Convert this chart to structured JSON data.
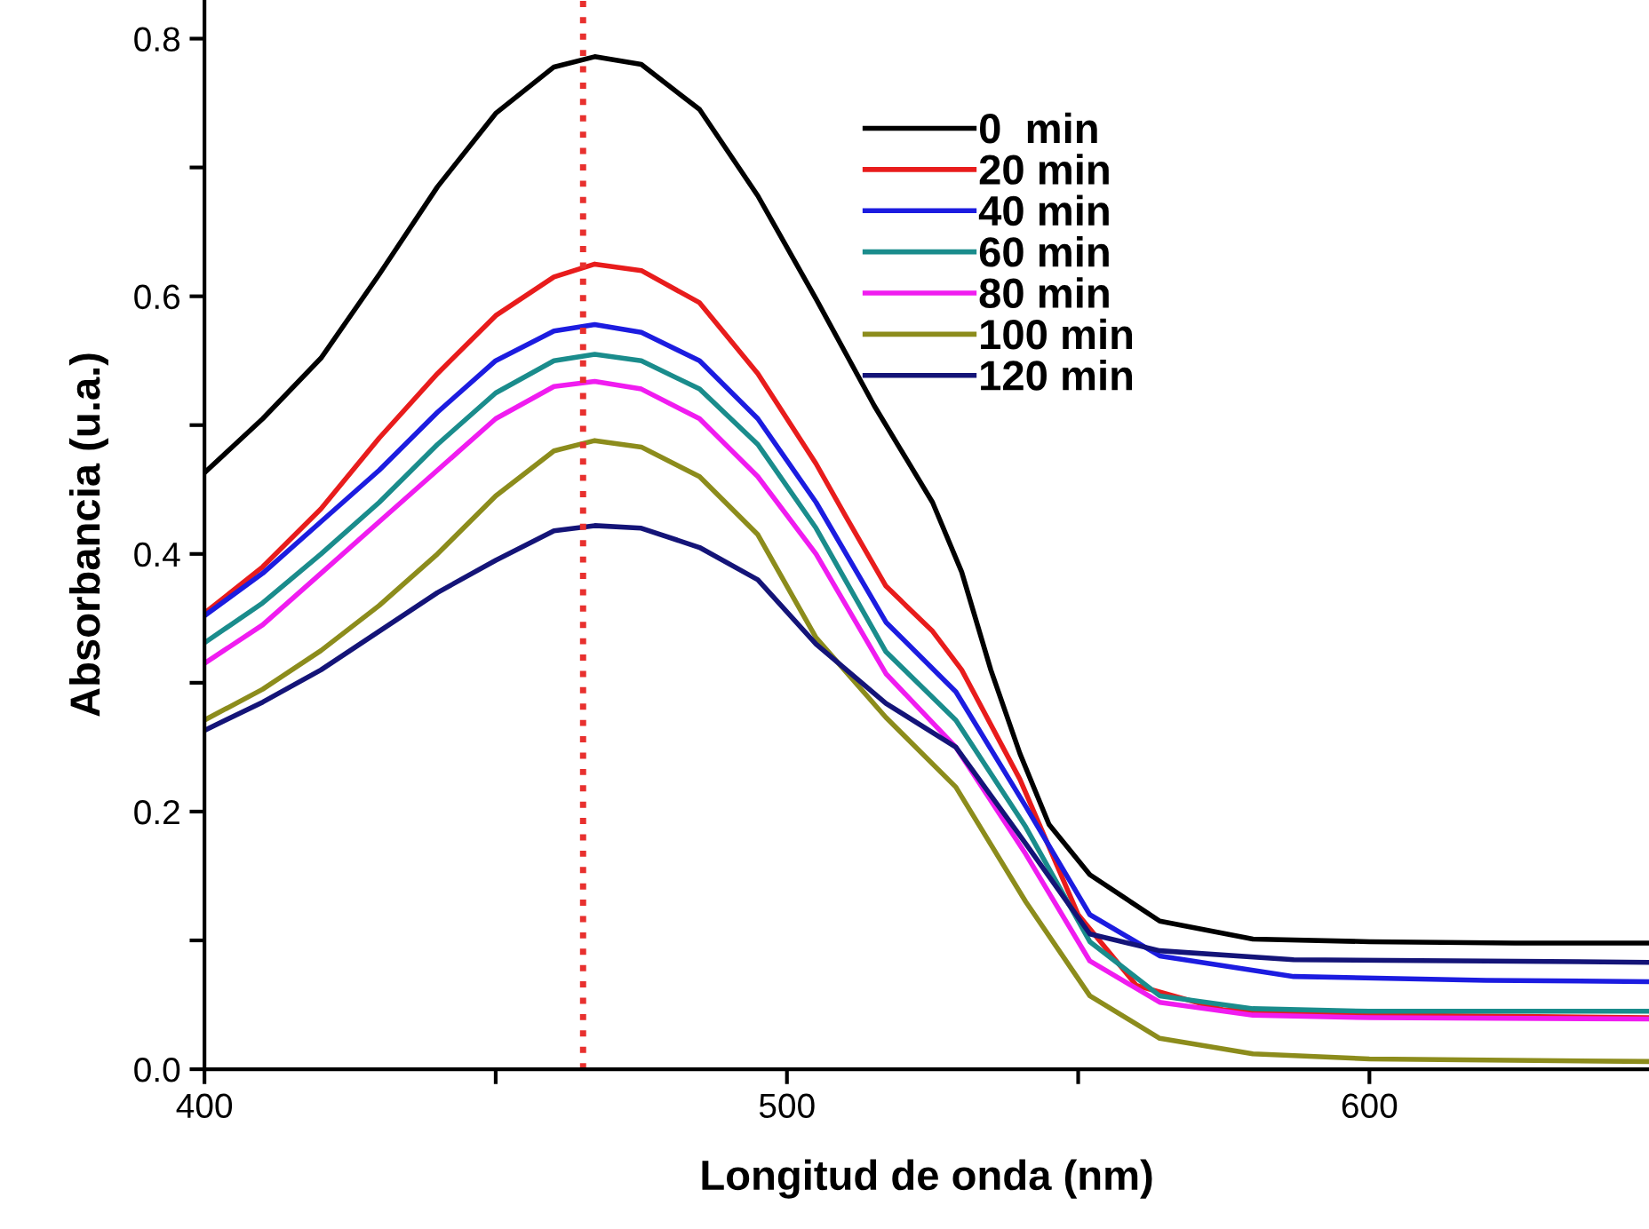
{
  "chart_data": {
    "type": "line",
    "xlabel": "Longitud de onda (nm)",
    "ylabel": "Absorbancia (u.a.)",
    "xlim": [
      400,
      648
    ],
    "ylim": [
      0,
      0.83
    ],
    "xticks": [
      400,
      {
        "value": 450,
        "label": null
      },
      500,
      {
        "value": 550,
        "label": null
      },
      600
    ],
    "yticks": [
      {
        "value": 0,
        "label": "0.0"
      },
      {
        "value": 0.1,
        "label": null
      },
      {
        "value": 0.2,
        "label": "0.2"
      },
      {
        "value": 0.3,
        "label": null
      },
      {
        "value": 0.4,
        "label": "0.4"
      },
      {
        "value": 0.5,
        "label": null
      },
      {
        "value": 0.6,
        "label": "0.6"
      },
      {
        "value": 0.7,
        "label": null
      },
      {
        "value": 0.8,
        "label": "0.8"
      }
    ],
    "grid": false,
    "legend": "top right",
    "marker": "none",
    "line_style": "solid",
    "ref_lines": [
      {
        "axis": "x",
        "value": 465,
        "color": "#e8302e",
        "line_style": "dotted"
      }
    ],
    "series": [
      {
        "name": "0  min",
        "color": "#000000",
        "x": [
          400,
          410,
          420,
          430,
          440,
          450,
          460,
          467,
          475,
          485,
          495,
          505,
          515,
          525,
          530,
          535,
          540,
          545,
          552,
          564,
          580,
          600,
          625,
          648
        ],
        "values": [
          0.463,
          0.505,
          0.552,
          0.617,
          0.685,
          0.742,
          0.778,
          0.786,
          0.78,
          0.745,
          0.678,
          0.598,
          0.515,
          0.44,
          0.386,
          0.31,
          0.245,
          0.19,
          0.151,
          0.115,
          0.101,
          0.099,
          0.098,
          0.098
        ]
      },
      {
        "name": "20 min",
        "color": "#e81c1c",
        "x": [
          400,
          410,
          420,
          430,
          440,
          450,
          460,
          467,
          475,
          485,
          495,
          505,
          510,
          517,
          525,
          530,
          540,
          550,
          560,
          575,
          600,
          625,
          648
        ],
        "values": [
          0.354,
          0.39,
          0.435,
          0.49,
          0.54,
          0.585,
          0.615,
          0.625,
          0.62,
          0.595,
          0.54,
          0.47,
          0.43,
          0.375,
          0.34,
          0.31,
          0.225,
          0.12,
          0.065,
          0.046,
          0.042,
          0.041,
          0.04
        ]
      },
      {
        "name": "40 min",
        "color": "#1c1ce0",
        "x": [
          400,
          410,
          420,
          430,
          440,
          450,
          460,
          467,
          475,
          485,
          495,
          505,
          517,
          529,
          541,
          552,
          564,
          587,
          620,
          648
        ],
        "values": [
          0.352,
          0.385,
          0.425,
          0.465,
          0.51,
          0.55,
          0.573,
          0.578,
          0.572,
          0.55,
          0.505,
          0.44,
          0.347,
          0.293,
          0.204,
          0.12,
          0.088,
          0.072,
          0.069,
          0.068
        ]
      },
      {
        "name": "60 min",
        "color": "#1a8c8c",
        "x": [
          400,
          410,
          420,
          430,
          440,
          450,
          460,
          467,
          475,
          485,
          495,
          505,
          517,
          529,
          541,
          552,
          564,
          580,
          600,
          648
        ],
        "values": [
          0.331,
          0.362,
          0.4,
          0.44,
          0.485,
          0.525,
          0.55,
          0.555,
          0.55,
          0.528,
          0.485,
          0.42,
          0.324,
          0.271,
          0.188,
          0.099,
          0.057,
          0.047,
          0.045,
          0.045
        ]
      },
      {
        "name": "80 min",
        "color": "#f01cf0",
        "x": [
          400,
          410,
          420,
          430,
          440,
          450,
          460,
          467,
          475,
          485,
          495,
          505,
          517,
          529,
          541,
          552,
          564,
          580,
          600,
          648
        ],
        "values": [
          0.315,
          0.345,
          0.385,
          0.425,
          0.465,
          0.505,
          0.53,
          0.534,
          0.528,
          0.505,
          0.46,
          0.4,
          0.307,
          0.25,
          0.167,
          0.084,
          0.052,
          0.042,
          0.04,
          0.039
        ]
      },
      {
        "name": "100 min",
        "color": "#8c8c1c",
        "x": [
          400,
          410,
          420,
          430,
          440,
          450,
          460,
          467,
          475,
          485,
          495,
          505,
          517,
          529,
          541,
          552,
          564,
          580,
          600,
          648
        ],
        "values": [
          0.271,
          0.295,
          0.325,
          0.36,
          0.4,
          0.445,
          0.48,
          0.488,
          0.483,
          0.46,
          0.415,
          0.335,
          0.273,
          0.219,
          0.13,
          0.057,
          0.024,
          0.012,
          0.008,
          0.006
        ]
      },
      {
        "name": "120 min",
        "color": "#141478",
        "x": [
          400,
          410,
          420,
          430,
          440,
          450,
          460,
          467,
          475,
          485,
          495,
          505,
          517,
          529,
          541,
          552,
          564,
          587,
          620,
          648
        ],
        "values": [
          0.263,
          0.285,
          0.31,
          0.34,
          0.37,
          0.395,
          0.418,
          0.422,
          0.42,
          0.405,
          0.38,
          0.33,
          0.284,
          0.25,
          0.175,
          0.105,
          0.092,
          0.085,
          0.084,
          0.083
        ]
      }
    ]
  }
}
